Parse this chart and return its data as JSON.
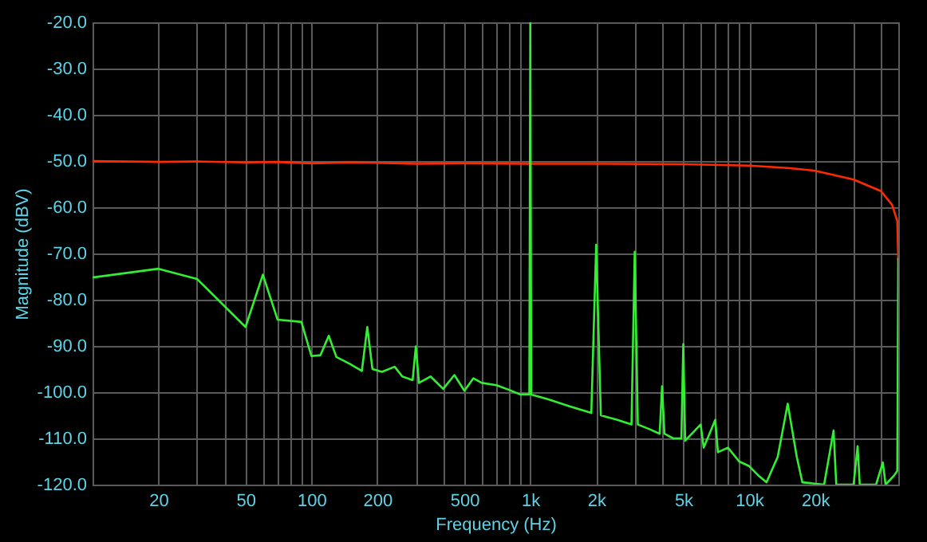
{
  "chart_data": {
    "type": "line",
    "xlabel": "Frequency (Hz)",
    "ylabel": "Magnitude (dBV)",
    "log": "x",
    "grid": true,
    "marker": "none",
    "line_style": "solid",
    "xlim": [
      10,
      48000
    ],
    "ylim": [
      -120,
      -20
    ],
    "xticks": [
      {
        "value": 20,
        "label": "20"
      },
      {
        "value": 30,
        "label": null
      },
      {
        "value": 40,
        "label": null
      },
      {
        "value": 50,
        "label": "50"
      },
      {
        "value": 60,
        "label": null
      },
      {
        "value": 70,
        "label": null
      },
      {
        "value": 80,
        "label": null
      },
      {
        "value": 90,
        "label": null
      },
      {
        "value": 100,
        "label": "100"
      },
      {
        "value": 200,
        "label": "200"
      },
      {
        "value": 300,
        "label": null
      },
      {
        "value": 400,
        "label": null
      },
      {
        "value": 500,
        "label": "500"
      },
      {
        "value": 600,
        "label": null
      },
      {
        "value": 700,
        "label": null
      },
      {
        "value": 800,
        "label": null
      },
      {
        "value": 900,
        "label": null
      },
      {
        "value": 1000,
        "label": "1k"
      },
      {
        "value": 2000,
        "label": "2k"
      },
      {
        "value": 3000,
        "label": null
      },
      {
        "value": 4000,
        "label": null
      },
      {
        "value": 5000,
        "label": "5k"
      },
      {
        "value": 6000,
        "label": null
      },
      {
        "value": 7000,
        "label": null
      },
      {
        "value": 8000,
        "label": null
      },
      {
        "value": 9000,
        "label": null
      },
      {
        "value": 10000,
        "label": "10k"
      },
      {
        "value": 20000,
        "label": "20k"
      },
      {
        "value": 30000,
        "label": null
      },
      {
        "value": 40000,
        "label": null
      }
    ],
    "yticks": [
      {
        "value": -20,
        "label": "-20.0"
      },
      {
        "value": -30,
        "label": "-30.0"
      },
      {
        "value": -40,
        "label": "-40.0"
      },
      {
        "value": -50,
        "label": "-50.0"
      },
      {
        "value": -60,
        "label": "-60.0"
      },
      {
        "value": -70,
        "label": "-70.0"
      },
      {
        "value": -80,
        "label": "-80.0"
      },
      {
        "value": -90,
        "label": "-90.0"
      },
      {
        "value": -100,
        "label": "-100.0"
      },
      {
        "value": -110,
        "label": "-110.0"
      },
      {
        "value": -120,
        "label": "-120.0"
      }
    ],
    "series": [
      {
        "color": "#ff2a00",
        "x": [
          10,
          20,
          30,
          50,
          70,
          100,
          150,
          200,
          300,
          500,
          1000,
          2000,
          5000,
          10000,
          15000,
          20000,
          30000,
          40000,
          45000,
          47500,
          48000
        ],
        "values": [
          -50,
          -50.2,
          -50.1,
          -50.3,
          -50.2,
          -50.5,
          -50.3,
          -50.4,
          -50.6,
          -50.5,
          -50.6,
          -50.6,
          -50.7,
          -51,
          -51.5,
          -52.1,
          -54,
          -56.5,
          -59.5,
          -63,
          -71.5
        ]
      },
      {
        "color": "#33ee33",
        "x": [
          10,
          20,
          30,
          50,
          60,
          70,
          90,
          100,
          110,
          120,
          130,
          150,
          170,
          180,
          190,
          210,
          240,
          260,
          290,
          300,
          310,
          350,
          400,
          450,
          500,
          550,
          600,
          700,
          800,
          900,
          990,
          1000,
          1010,
          1200,
          1500,
          1900,
          2000,
          2100,
          2500,
          2900,
          3000,
          3100,
          3500,
          3900,
          4000,
          4100,
          4500,
          4900,
          5000,
          5100,
          6000,
          6200,
          7000,
          7200,
          8000,
          9000,
          10000,
          11000,
          12000,
          13500,
          15000,
          16500,
          17500,
          22000,
          24300,
          25000,
          30000,
          31300,
          32000,
          38000,
          40800,
          42000,
          46000,
          47500,
          48000
        ],
        "values": [
          -75.2,
          -73.3,
          -75.5,
          -85.9,
          -74.6,
          -84.3,
          -84.8,
          -92.2,
          -92,
          -87.8,
          -92.4,
          -93.9,
          -95.4,
          -85.9,
          -95,
          -95.6,
          -94.5,
          -96.6,
          -97.4,
          -90.1,
          -98,
          -96.6,
          -99.3,
          -96.3,
          -99.7,
          -97,
          -98,
          -98.5,
          -99.5,
          -100.5,
          -100.5,
          -20,
          -100.5,
          -101.5,
          -103,
          -104.5,
          -68.1,
          -105,
          -106,
          -107,
          -69.6,
          -107,
          -108,
          -109,
          -98.7,
          -109,
          -110,
          -110,
          -89.6,
          -110.5,
          -107,
          -112,
          -106,
          -113,
          -112,
          -115,
          -116,
          -118,
          -119.5,
          -114,
          -102.5,
          -114,
          -119.5,
          -120,
          -108.3,
          -120,
          -120,
          -111.7,
          -120,
          -120,
          -115.2,
          -120,
          -118,
          -117,
          -71
        ]
      }
    ]
  }
}
